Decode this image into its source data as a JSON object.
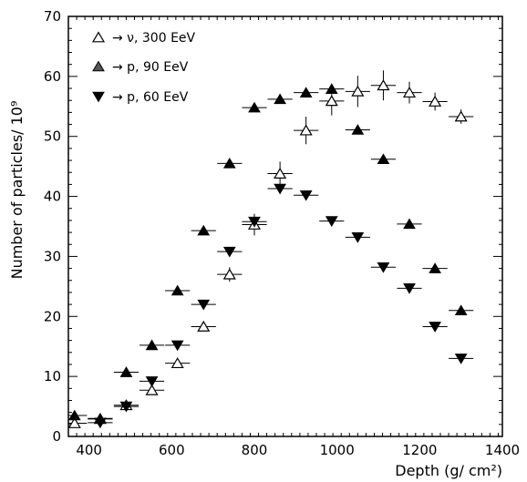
{
  "chart_data": {
    "type": "scatter",
    "xlabel": "Depth (g/ cm²)",
    "ylabel": "Number of particles/ 10⁹",
    "xlim": [
      350,
      1400
    ],
    "ylim": [
      0,
      70
    ],
    "x_ticks": [
      "400",
      "600",
      "800",
      "1000",
      "1200",
      "1400"
    ],
    "y_ticks": [
      "0",
      "10",
      "20",
      "30",
      "40",
      "50",
      "60",
      "70"
    ],
    "x_tick_values": [
      400,
      600,
      800,
      1000,
      1200,
      1400
    ],
    "y_tick_values": [
      0,
      10,
      20,
      30,
      40,
      50,
      60,
      70
    ],
    "legend_placement": "top-left",
    "x_halfwidth": 30,
    "series": [
      {
        "name": "→ ν, 300 EeV",
        "marker": "open-triangle-up",
        "points": [
          {
            "x": 365,
            "y": 2.2,
            "err": 0
          },
          {
            "x": 427,
            "y": 2.9,
            "err": 0.6
          },
          {
            "x": 490,
            "y": 5.2,
            "err": 0.7
          },
          {
            "x": 552,
            "y": 7.7,
            "err": 0.6
          },
          {
            "x": 614,
            "y": 12.2,
            "err": 0.6
          },
          {
            "x": 677,
            "y": 18.3,
            "err": 0.7
          },
          {
            "x": 740,
            "y": 27.0,
            "err": 1.2
          },
          {
            "x": 800,
            "y": 35.3,
            "err": 1.8
          },
          {
            "x": 862,
            "y": 43.8,
            "err": 2.0
          },
          {
            "x": 925,
            "y": 51.0,
            "err": 2.3
          },
          {
            "x": 987,
            "y": 55.9,
            "err": 2.4
          },
          {
            "x": 1050,
            "y": 57.5,
            "err": 2.6
          },
          {
            "x": 1112,
            "y": 58.5,
            "err": 2.5
          },
          {
            "x": 1175,
            "y": 57.3,
            "err": 1.8
          },
          {
            "x": 1237,
            "y": 55.8,
            "err": 1.5
          },
          {
            "x": 1300,
            "y": 53.3,
            "err": 1.2
          }
        ]
      },
      {
        "name": "→ p, 90 EeV",
        "marker": "filled-triangle-up",
        "points": [
          {
            "x": 365,
            "y": 3.5
          },
          {
            "x": 427,
            "y": 3.0
          },
          {
            "x": 490,
            "y": 10.7
          },
          {
            "x": 552,
            "y": 15.2
          },
          {
            "x": 614,
            "y": 24.3
          },
          {
            "x": 677,
            "y": 34.3
          },
          {
            "x": 740,
            "y": 45.5
          },
          {
            "x": 800,
            "y": 54.8
          },
          {
            "x": 862,
            "y": 56.2
          },
          {
            "x": 925,
            "y": 57.3
          },
          {
            "x": 987,
            "y": 57.9
          },
          {
            "x": 1050,
            "y": 51.1
          },
          {
            "x": 1112,
            "y": 46.2
          },
          {
            "x": 1175,
            "y": 35.4
          },
          {
            "x": 1237,
            "y": 28.0
          },
          {
            "x": 1300,
            "y": 21.0
          }
        ]
      },
      {
        "name": "→ p, 60 EeV",
        "marker": "filled-triangle-down",
        "points": [
          {
            "x": 427,
            "y": 2.3
          },
          {
            "x": 490,
            "y": 5.0
          },
          {
            "x": 552,
            "y": 9.2
          },
          {
            "x": 614,
            "y": 15.2
          },
          {
            "x": 677,
            "y": 22.0
          },
          {
            "x": 740,
            "y": 30.8
          },
          {
            "x": 800,
            "y": 35.8
          },
          {
            "x": 862,
            "y": 41.3
          },
          {
            "x": 925,
            "y": 40.2
          },
          {
            "x": 987,
            "y": 35.9
          },
          {
            "x": 1050,
            "y": 33.2
          },
          {
            "x": 1112,
            "y": 28.2
          },
          {
            "x": 1175,
            "y": 24.7
          },
          {
            "x": 1237,
            "y": 18.3
          },
          {
            "x": 1300,
            "y": 13.0
          }
        ]
      }
    ]
  }
}
